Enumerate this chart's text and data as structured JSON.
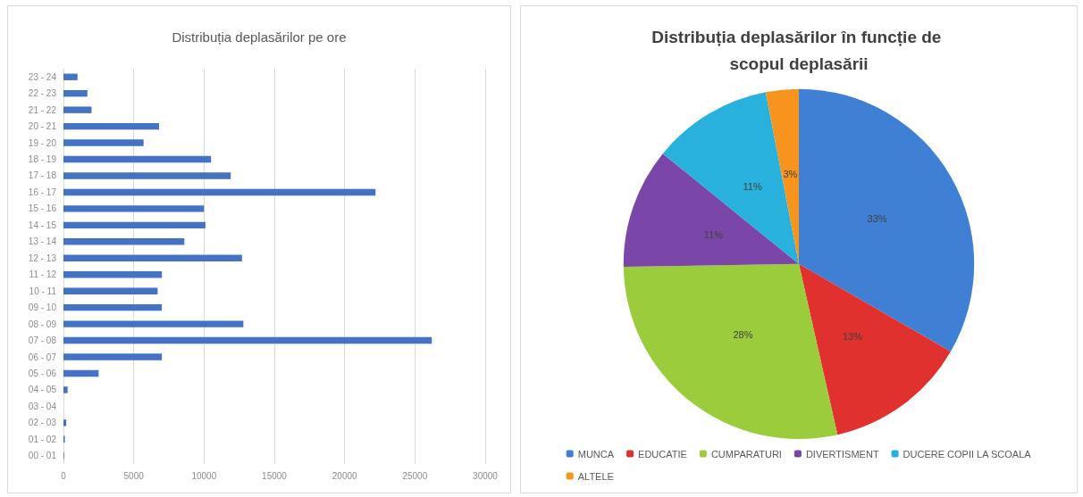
{
  "chart_data": [
    {
      "type": "bar",
      "title": "Distribuția deplasărilor pe ore",
      "orientation": "horizontal",
      "categories": [
        "23 - 24",
        "22 - 23",
        "21 - 22",
        "20 - 21",
        "19 - 20",
        "18 - 19",
        "17 - 18",
        "16 - 17",
        "15 - 16",
        "14 - 15",
        "13 - 14",
        "12 - 13",
        "11 - 12",
        "10 - 11",
        "09 - 10",
        "08 - 09",
        "07 - 08",
        "06 - 07",
        "05 - 06",
        "04 - 05",
        "03 - 04",
        "02 - 03",
        "01 - 02",
        "00 - 01"
      ],
      "values": [
        1000,
        1700,
        2000,
        6800,
        5700,
        10500,
        11900,
        22200,
        10000,
        10100,
        8600,
        12700,
        7000,
        6700,
        7000,
        12800,
        26200,
        7000,
        2500,
        300,
        0,
        200,
        100,
        50
      ],
      "color": "#4472c4",
      "xlim": [
        0,
        30000
      ],
      "xticks": [
        0,
        5000,
        10000,
        15000,
        20000,
        25000,
        30000
      ],
      "grid": "x",
      "legend": false
    },
    {
      "type": "pie",
      "title": "Distribuția deplasărilor în funcție de scopul deplasării",
      "categories": [
        "MUNCA",
        "EDUCATIE",
        "CUMPARATURI",
        "DIVERTISMENT",
        "DUCERE COPII LA SCOALA",
        "ALTELE"
      ],
      "values": [
        33,
        13,
        28,
        11,
        11,
        3
      ],
      "colors": [
        "#3f7fd4",
        "#e0312e",
        "#9bcc3c",
        "#7a46a8",
        "#27b1dc",
        "#f7941d"
      ],
      "value_labels": [
        "33%",
        "13%",
        "28%",
        "11%",
        "11%",
        "3%"
      ],
      "legend": "bottom"
    }
  ]
}
